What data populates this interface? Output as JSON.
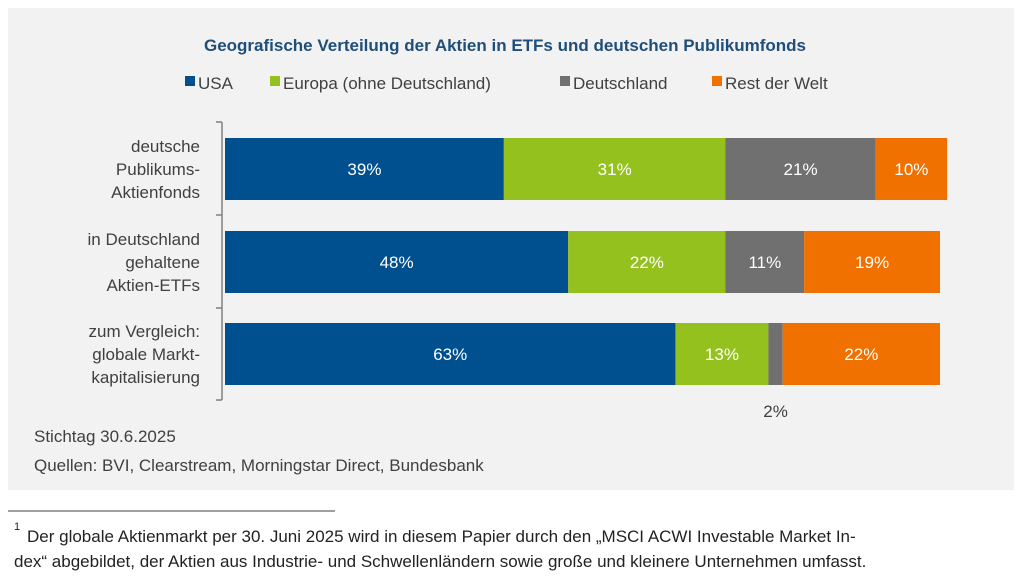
{
  "chart_data": {
    "type": "stacked-barh",
    "title": "Geografische Verteilung der Aktien in ETFs und deutschen Publikumfonds",
    "categories": [
      [
        "deutsche",
        "Publikums-",
        "Aktienfonds"
      ],
      [
        "in Deutschland",
        "gehaltene",
        "Aktien-ETFs"
      ],
      [
        "zum Vergleich:",
        "globale Markt-",
        "kapitalisierung"
      ]
    ],
    "series": [
      {
        "name": "USA",
        "color": "#00508f",
        "values": [
          39,
          48,
          63
        ],
        "value_labels": [
          "39%",
          "48%",
          "63%"
        ]
      },
      {
        "name": "Europa (ohne Deutschland)",
        "color": "#95c11f",
        "values": [
          31,
          22,
          13
        ],
        "value_labels": [
          "31%",
          "22%",
          "13%"
        ]
      },
      {
        "name": "Deutschland",
        "color": "#707070",
        "values": [
          21,
          11,
          2
        ],
        "value_labels": [
          "21%",
          "11%",
          "2%"
        ]
      },
      {
        "name": "Rest der Welt",
        "color": "#f07000",
        "values": [
          10,
          19,
          22
        ],
        "value_labels": [
          "10%",
          "19%",
          "22%"
        ]
      }
    ],
    "xlim": [
      0,
      100
    ],
    "notes": [
      "Stichtag 30.6.2025",
      "Quellen: BVI, Clearstream, Morningstar Direct, Bundesbank"
    ]
  },
  "footnote": {
    "marker": "1",
    "lines": [
      "Der globale Aktienmarkt per 30. Juni 2025 wird in diesem Papier durch den „MSCI ACWI Investable Market In-",
      "dex“ abgebildet, der Aktien aus Industrie- und Schwellenländern sowie große und kleinere Unternehmen umfasst."
    ]
  }
}
